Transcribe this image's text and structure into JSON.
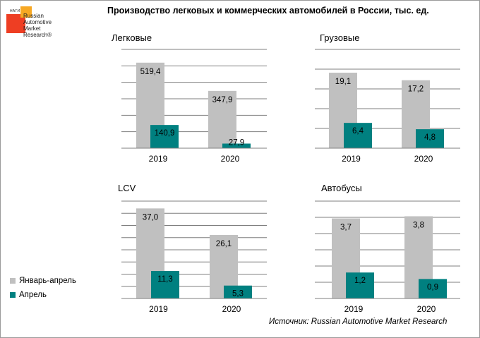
{
  "title": "Производство легковых и коммерческих автомобилей в России, тыс. ед.",
  "logo": {
    "abbr": "НАГИ",
    "lines": [
      "Russian",
      "Automotive",
      "Market",
      "Research®"
    ]
  },
  "colors": {
    "series1": "#c0c0c0",
    "series2": "#008080",
    "grid": "#7f7f7f"
  },
  "legend": [
    "Январь-апрель",
    "Апрель"
  ],
  "source": "Источник: Russian Automotive Market Research",
  "chart_data": [
    {
      "type": "bar",
      "title": "Легковые",
      "categories": [
        "2019",
        "2020"
      ],
      "series": [
        {
          "name": "Январь-апрель",
          "values": [
            519.4,
            347.9
          ],
          "labels": [
            "519,4",
            "347,9"
          ]
        },
        {
          "name": "Апрель",
          "values": [
            140.9,
            27.9
          ],
          "labels": [
            "140,9",
            "27,9"
          ]
        }
      ],
      "ylim": [
        0,
        600
      ],
      "grid": true,
      "gridlines": 6
    },
    {
      "type": "bar",
      "title": "Грузовые",
      "categories": [
        "2019",
        "2020"
      ],
      "series": [
        {
          "name": "Январь-апрель",
          "values": [
            19.1,
            17.2
          ],
          "labels": [
            "19,1",
            "17,2"
          ]
        },
        {
          "name": "Апрель",
          "values": [
            6.4,
            4.8
          ],
          "labels": [
            "6,4",
            "4,8"
          ]
        }
      ],
      "ylim": [
        0,
        25
      ],
      "grid": true,
      "gridlines": 5
    },
    {
      "type": "bar",
      "title": "LCV",
      "categories": [
        "2019",
        "2020"
      ],
      "series": [
        {
          "name": "Январь-апрель",
          "values": [
            37.0,
            26.1
          ],
          "labels": [
            "37,0",
            "26,1"
          ]
        },
        {
          "name": "Апрель",
          "values": [
            11.3,
            5.3
          ],
          "labels": [
            "11,3",
            "5,3"
          ]
        }
      ],
      "ylim": [
        0,
        40
      ],
      "grid": true,
      "gridlines": 8
    },
    {
      "type": "bar",
      "title": "Автобусы",
      "categories": [
        "2019",
        "2020"
      ],
      "series": [
        {
          "name": "Январь-апрель",
          "values": [
            3.7,
            3.8
          ],
          "labels": [
            "3,7",
            "3,8"
          ]
        },
        {
          "name": "Апрель",
          "values": [
            1.2,
            0.9
          ],
          "labels": [
            "1,2",
            "0,9"
          ]
        }
      ],
      "ylim": [
        0,
        4.5
      ],
      "grid": true,
      "gridlines": 6
    }
  ]
}
